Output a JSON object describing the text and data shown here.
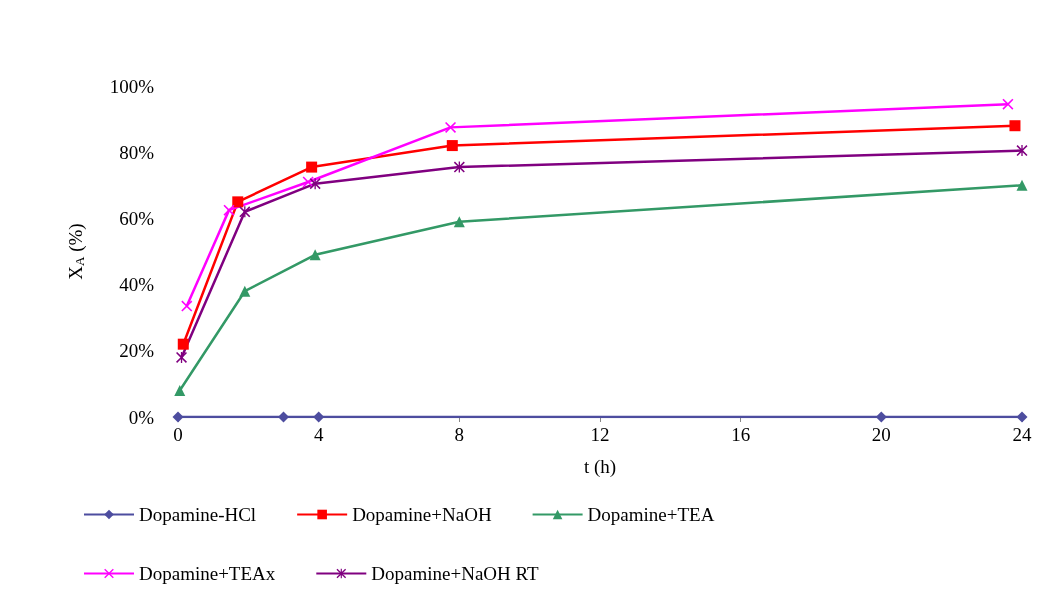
{
  "chart_data": {
    "type": "line",
    "xlabel": "t (h)",
    "ylabel": "X$_{A}$ (%)",
    "xlim": [
      0,
      24
    ],
    "xticks": [
      0,
      4,
      8,
      12,
      16,
      20,
      24
    ],
    "ylim": [
      0,
      100
    ],
    "yticks": [
      {
        "value": 0,
        "label": "0%"
      },
      {
        "value": 20,
        "label": "20%"
      },
      {
        "value": 40,
        "label": "40%"
      },
      {
        "value": 60,
        "label": "60%"
      },
      {
        "value": 80,
        "label": "80%"
      },
      {
        "value": 100,
        "label": "100%"
      }
    ],
    "grid": false,
    "legend": "bottom",
    "line_style": "solid",
    "series": [
      {
        "name": "Dopamine-HCl",
        "color": "#4d4d9f",
        "marker": "diamond",
        "x": [
          0,
          3,
          4,
          20,
          24
        ],
        "values": [
          0,
          0,
          0,
          0,
          0
        ]
      },
      {
        "name": "Dopamine+NaOH",
        "color": "#ff0000",
        "marker": "square",
        "x": [
          0.15,
          1.7,
          3.8,
          7.8,
          23.8
        ],
        "values": [
          22,
          65,
          75.5,
          82,
          88
        ]
      },
      {
        "name": "Dopamine+TEA",
        "color": "#339966",
        "marker": "triangle",
        "x": [
          0.05,
          1.9,
          3.9,
          8,
          24
        ],
        "values": [
          8,
          38,
          49,
          59,
          70
        ]
      },
      {
        "name": "Dopamine+TEAx",
        "color": "#ff00ff",
        "marker": "cross",
        "x": [
          0.25,
          1.45,
          3.7,
          7.75,
          23.6
        ],
        "values": [
          33.5,
          62.5,
          71,
          87.5,
          94.5
        ]
      },
      {
        "name": "Dopamine+NaOH RT",
        "color": "#800080",
        "marker": "star",
        "x": [
          0.1,
          1.9,
          3.9,
          8,
          24
        ],
        "values": [
          18,
          62,
          70.5,
          75.5,
          80.5
        ]
      }
    ]
  }
}
